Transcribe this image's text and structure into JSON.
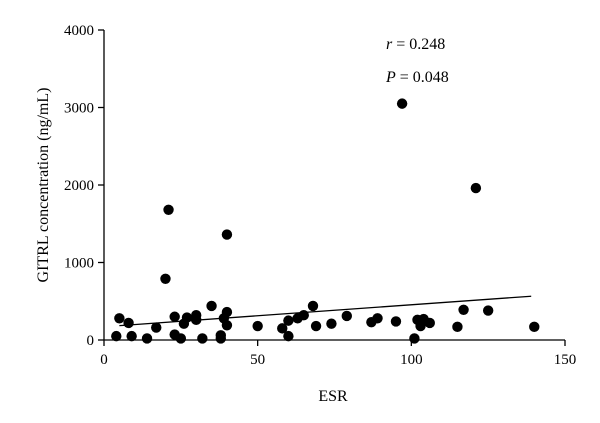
{
  "chart_data": {
    "type": "scatter",
    "xlabel": "ESR",
    "ylabel": "GITRL concentration (ng/mL)",
    "xlim": [
      0,
      150
    ],
    "ylim": [
      0,
      4000
    ],
    "x_ticks": [
      "0",
      "50",
      "100",
      "150"
    ],
    "y_ticks": [
      "0",
      "1000",
      "2000",
      "3000",
      "4000"
    ],
    "grid": false,
    "annotations": [
      {
        "symbol": "r",
        "text": " = 0.248"
      },
      {
        "symbol": "P",
        "text": " = 0.048"
      }
    ],
    "points": [
      [
        4,
        50
      ],
      [
        5,
        280
      ],
      [
        8,
        220
      ],
      [
        9,
        50
      ],
      [
        14,
        20
      ],
      [
        17,
        160
      ],
      [
        20,
        790
      ],
      [
        21,
        1680
      ],
      [
        23,
        70
      ],
      [
        23,
        300
      ],
      [
        25,
        20
      ],
      [
        26,
        210
      ],
      [
        27,
        290
      ],
      [
        30,
        320
      ],
      [
        30,
        260
      ],
      [
        32,
        20
      ],
      [
        35,
        440
      ],
      [
        38,
        20
      ],
      [
        38,
        60
      ],
      [
        39,
        280
      ],
      [
        40,
        360
      ],
      [
        40,
        190
      ],
      [
        40,
        1360
      ],
      [
        50,
        180
      ],
      [
        58,
        150
      ],
      [
        60,
        250
      ],
      [
        60,
        50
      ],
      [
        63,
        280
      ],
      [
        65,
        320
      ],
      [
        68,
        440
      ],
      [
        69,
        180
      ],
      [
        74,
        210
      ],
      [
        79,
        310
      ],
      [
        87,
        230
      ],
      [
        89,
        280
      ],
      [
        95,
        240
      ],
      [
        97,
        3050
      ],
      [
        101,
        20
      ],
      [
        102,
        260
      ],
      [
        103,
        180
      ],
      [
        104,
        270
      ],
      [
        106,
        220
      ],
      [
        115,
        170
      ],
      [
        117,
        390
      ],
      [
        121,
        1960
      ],
      [
        125,
        380
      ],
      [
        140,
        170
      ]
    ],
    "fit_line": {
      "x": [
        5,
        139
      ],
      "y": [
        185,
        565
      ]
    }
  }
}
